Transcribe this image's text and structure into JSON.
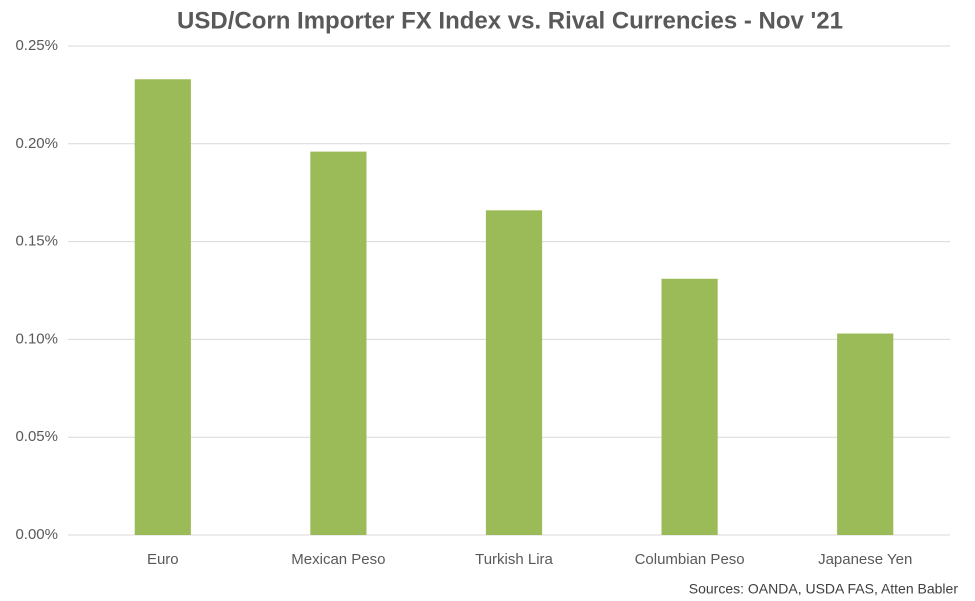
{
  "chart_data": {
    "type": "bar",
    "title": "USD/Corn Importer FX Index vs. Rival Currencies - Nov '21",
    "categories": [
      "Euro",
      "Mexican Peso",
      "Turkish Lira",
      "Columbian Peso",
      "Japanese Yen"
    ],
    "values": [
      0.233,
      0.196,
      0.166,
      0.131,
      0.103
    ],
    "color": "#9bbb59",
    "ylim": [
      0,
      0.25
    ],
    "yticks": [
      {
        "value": 0,
        "label": "0.00%"
      },
      {
        "value": 0.05,
        "label": "0.05%"
      },
      {
        "value": 0.1,
        "label": "0.10%"
      },
      {
        "value": 0.15,
        "label": "0.15%"
      },
      {
        "value": 0.2,
        "label": "0.20%"
      },
      {
        "value": 0.25,
        "label": "0.25%"
      }
    ],
    "grid": true,
    "source": "Sources: OANDA, USDA FAS, Atten Babler"
  }
}
